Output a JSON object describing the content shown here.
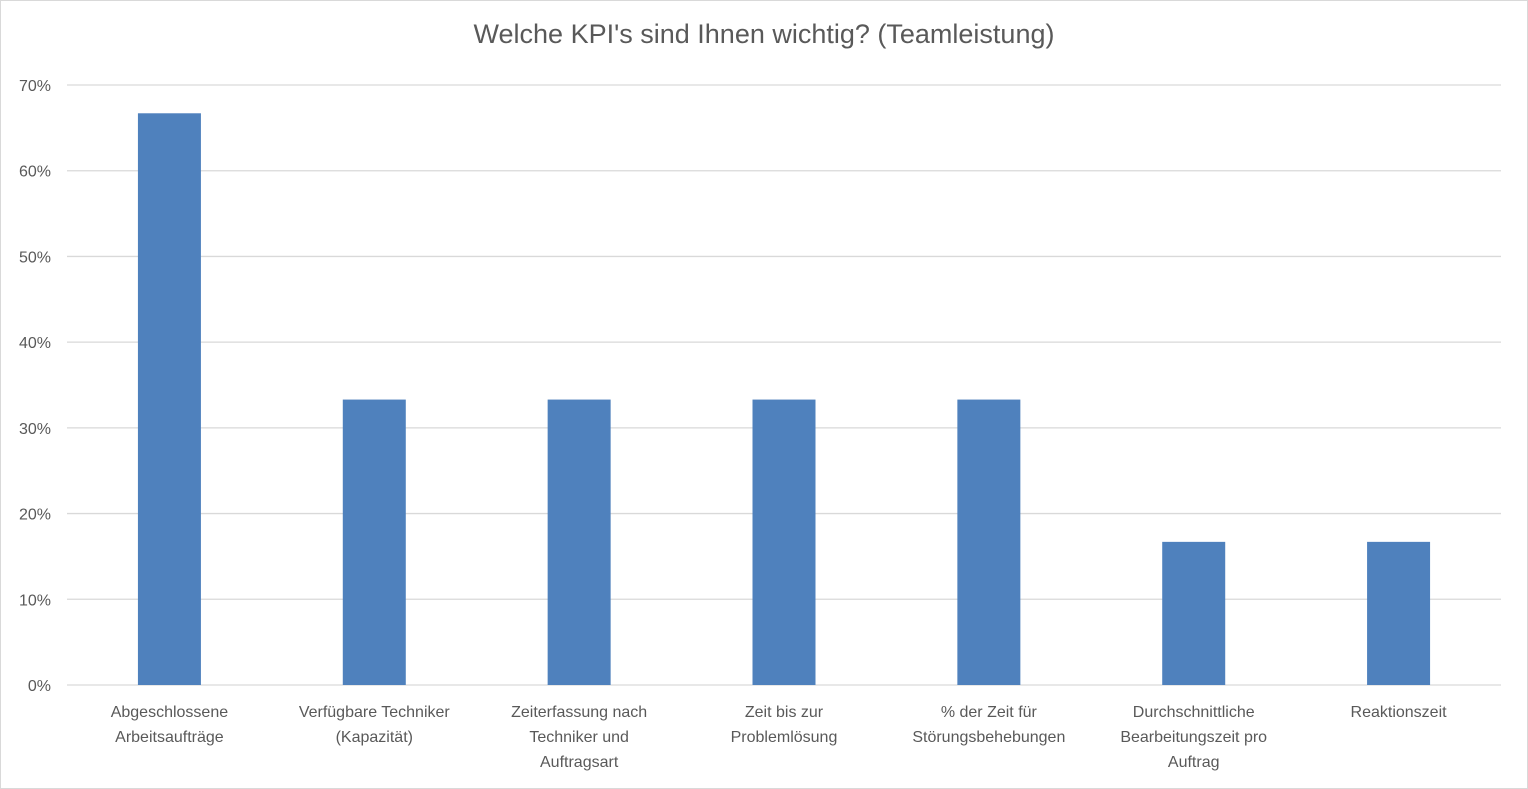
{
  "chart_data": {
    "type": "bar",
    "title": "Welche KPI's sind Ihnen wichtig? (Teamleistung)",
    "xlabel": "",
    "ylabel": "",
    "ylim": [
      0,
      70
    ],
    "yticks": [
      "0%",
      "10%",
      "20%",
      "30%",
      "40%",
      "50%",
      "60%",
      "70%"
    ],
    "grid": true,
    "categories": [
      [
        "Abgeschlossene",
        "Arbeitsaufträge"
      ],
      [
        "Verfügbare Techniker",
        "(Kapazität)"
      ],
      [
        "Zeiterfassung nach",
        "Techniker und",
        "Auftragsart"
      ],
      [
        "Zeit bis zur",
        "Problemlösung"
      ],
      [
        "% der Zeit für",
        "Störungsbehebungen"
      ],
      [
        "Durchschnittliche",
        "Bearbeitungszeit pro",
        "Auftrag"
      ],
      [
        "Reaktionszeit"
      ]
    ],
    "values": [
      66.7,
      33.3,
      33.3,
      33.3,
      33.3,
      16.7,
      16.7
    ],
    "colors": {
      "bar": "#4f81bd",
      "grid": "#d9d9d9",
      "text": "#595959"
    }
  }
}
